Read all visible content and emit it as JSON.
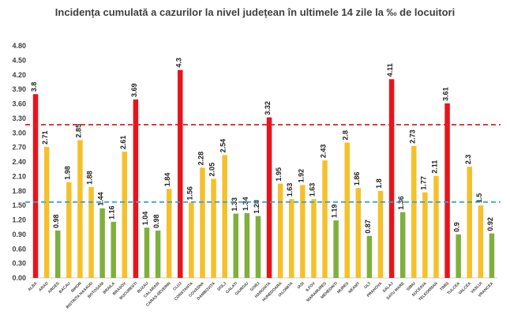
{
  "chart_data": {
    "type": "bar",
    "title": "Incidența cumulată a cazurilor la nivel județean în ultimele 14 zile la ‰ de locuitori",
    "xlabel": "",
    "ylabel": "",
    "ylim": [
      0,
      4.8
    ],
    "y_ticks": [
      "0.00",
      "0.30",
      "0.60",
      "0.90",
      "1.20",
      "1.50",
      "1.80",
      "2.10",
      "2.40",
      "2.70",
      "3.00",
      "3.30",
      "3.60",
      "3.90",
      "4.20",
      "4.50",
      "4.80"
    ],
    "grid": false,
    "legend": "none",
    "categories": [
      "ALBA",
      "ARAD",
      "ARGES",
      "BACAU",
      "BIHOR",
      "BISTRITA NASAUD",
      "BOTOSANI",
      "BRAILA",
      "BRASOV",
      "BUCURESTI",
      "BUZAU",
      "CALARASI",
      "CARAS-SEVERIN",
      "CLUJ",
      "CONSTANTA",
      "COVASNA",
      "DAMBOVITA",
      "DOLJ",
      "GALATI",
      "GIURGIU",
      "GORJ",
      "HARGHITA",
      "HUNEDOARA",
      "IALOMITA",
      "IASI",
      "ILFOV",
      "MARAMURES",
      "MEHEDINTI",
      "MURES",
      "NEAMT",
      "OLT",
      "PRAHOVA",
      "SALAJ",
      "SATU MARE",
      "SIBIU",
      "SUCEAVA",
      "TELEORMAN",
      "TIMIS",
      "TULCEA",
      "VALCEA",
      "VASLUI",
      "VRANCEA"
    ],
    "values": [
      3.8,
      2.71,
      0.98,
      1.98,
      2.85,
      1.88,
      1.44,
      1.16,
      2.61,
      3.69,
      1.04,
      0.98,
      1.84,
      4.3,
      1.56,
      2.28,
      2.05,
      2.54,
      1.33,
      1.34,
      1.28,
      3.32,
      1.95,
      1.63,
      1.92,
      1.63,
      2.43,
      1.19,
      2.8,
      1.86,
      0.87,
      1.8,
      4.11,
      1.36,
      2.73,
      1.77,
      2.11,
      3.61,
      0.9,
      2.3,
      1.5,
      0.92
    ],
    "thresholds": [
      {
        "value": 3.0,
        "color": "#e02020",
        "style": "dashed"
      },
      {
        "value": 1.5,
        "color": "#2aa8d8",
        "style": "dashed"
      }
    ],
    "colors": {
      "high": "#e8141c",
      "mid": "#f5c02a",
      "low": "#7fb03c"
    },
    "value_labels": [
      "3.8",
      "2.71",
      "0.98",
      "1.98",
      "2.85",
      "1.88",
      "1.44",
      "1.16",
      "2.61",
      "3.69",
      "1.04",
      "0.98",
      "1.84",
      "4.3",
      "1.56",
      "2.28",
      "2.05",
      "2.54",
      "1.33",
      "1.34",
      "1.28",
      "3.32",
      "1.95",
      "1.63",
      "1.92",
      "1.63",
      "2.43",
      "1.19",
      "2.8",
      "1.86",
      "0.87",
      "1.8",
      "4.11",
      "1.36",
      "2.73",
      "1.77",
      "2.11",
      "3.61",
      "0.9",
      "2.3",
      "1.5",
      "0.92"
    ]
  }
}
